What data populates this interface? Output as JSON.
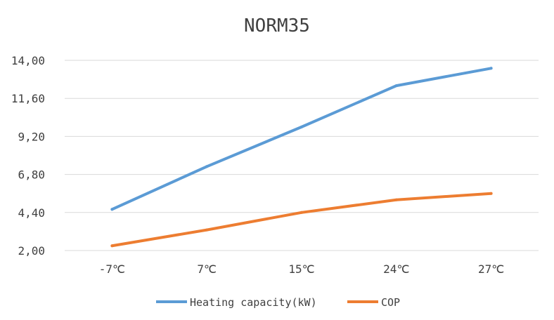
{
  "chart_data": {
    "type": "line",
    "title": "NORM35",
    "categories": [
      "-7℃",
      "7℃",
      "15℃",
      "24℃",
      "27℃"
    ],
    "y_ticks": [
      "2,00",
      "4,40",
      "6,80",
      "9,20",
      "11,60",
      "14,00"
    ],
    "ylim": [
      2.0,
      14.0
    ],
    "grid": true,
    "legend_position": "bottom",
    "series": [
      {
        "name": "Heating capacity(kW)",
        "color": "#5B9BD5",
        "values": [
          4.6,
          7.3,
          9.8,
          12.4,
          13.5
        ]
      },
      {
        "name": "COP",
        "color": "#ED7D31",
        "values": [
          2.3,
          3.3,
          4.4,
          5.2,
          5.6
        ]
      }
    ],
    "xlabel": "",
    "ylabel": ""
  }
}
